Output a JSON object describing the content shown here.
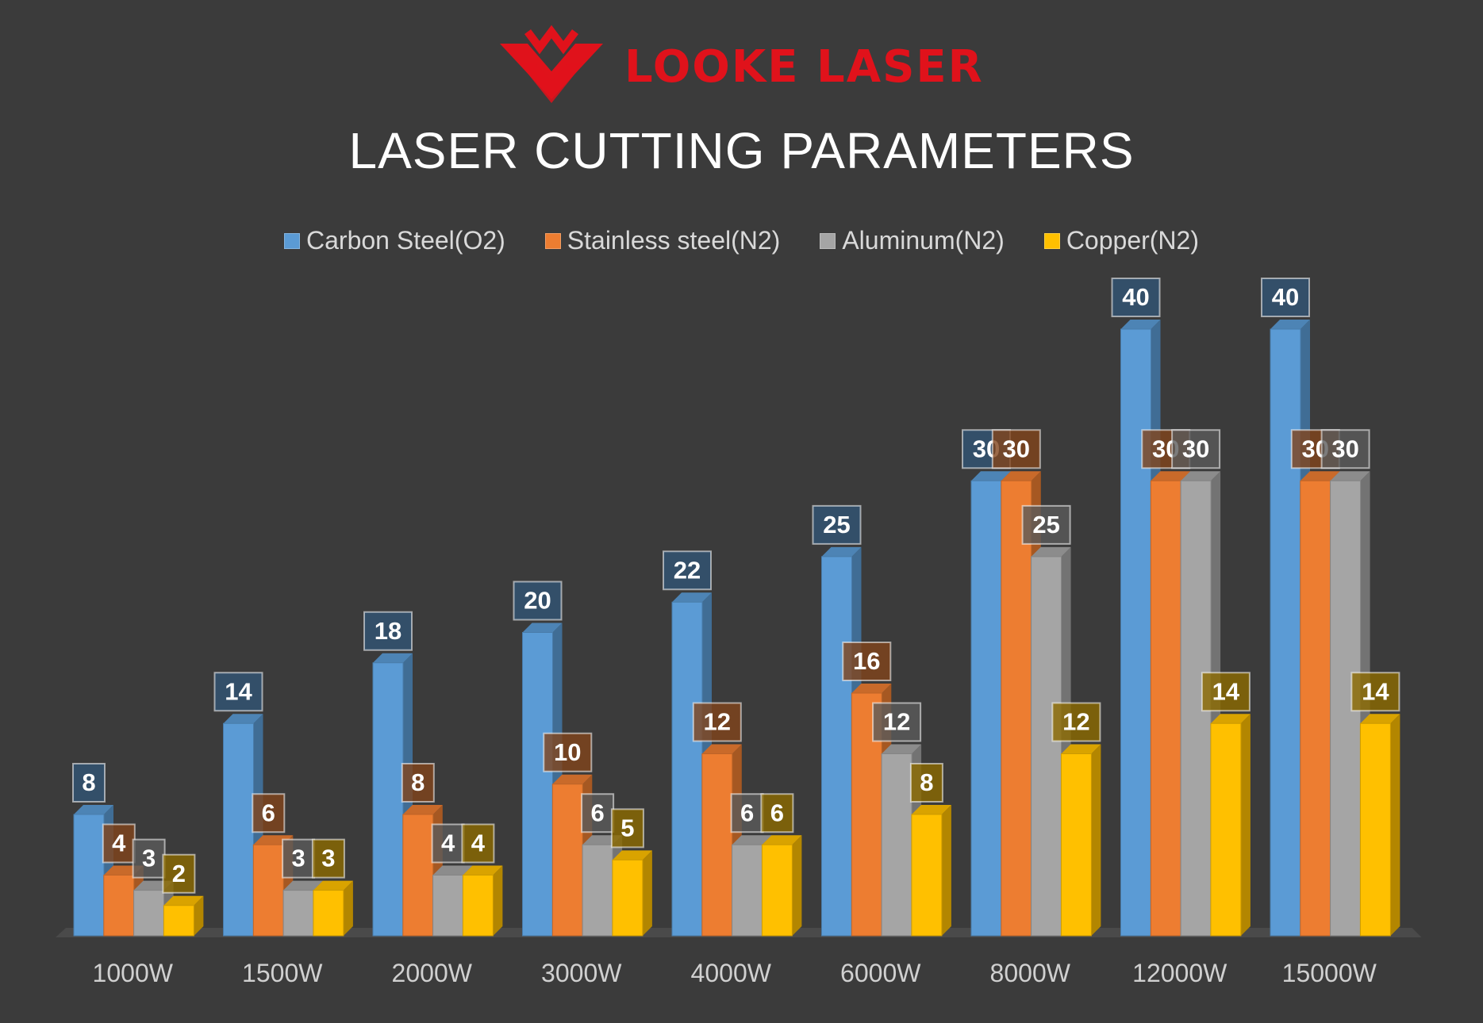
{
  "brand": {
    "name": "LOOKE LASER",
    "color": "#e0121b",
    "logo_icon": "double-chevron-v-logo"
  },
  "chart_data": {
    "type": "bar",
    "title": "LASER CUTTING PARAMETERS",
    "xlabel": "",
    "ylabel": "",
    "ylim": [
      0,
      40
    ],
    "grid": false,
    "legend_position": "top",
    "categories": [
      "1000W",
      "1500W",
      "2000W",
      "3000W",
      "4000W",
      "6000W",
      "8000W",
      "12000W",
      "15000W"
    ],
    "series": [
      {
        "name": "Carbon Steel(O2)",
        "color": "#5b9bd5",
        "values": [
          8,
          14,
          18,
          20,
          22,
          25,
          30,
          40,
          40
        ]
      },
      {
        "name": "Stainless steel(N2)",
        "color": "#ed7d31",
        "values": [
          4,
          6,
          8,
          10,
          12,
          16,
          30,
          30,
          30
        ]
      },
      {
        "name": "Aluminum(N2)",
        "color": "#a5a5a5",
        "values": [
          3,
          3,
          4,
          6,
          6,
          12,
          25,
          30,
          30
        ]
      },
      {
        "name": "Copper(N2)",
        "color": "#ffc000",
        "values": [
          2,
          3,
          4,
          5,
          6,
          8,
          12,
          14,
          14
        ]
      }
    ]
  }
}
